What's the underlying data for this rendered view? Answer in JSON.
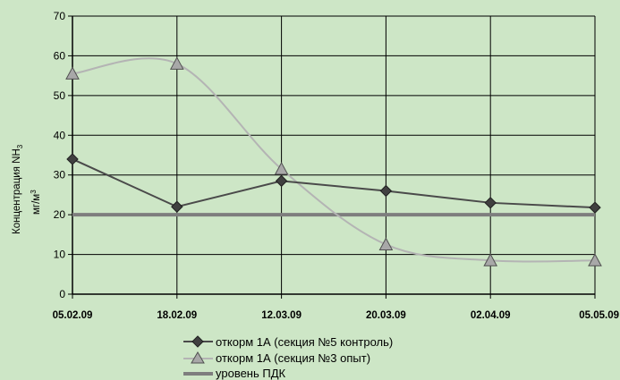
{
  "chart_data": {
    "type": "line",
    "categories": [
      "05.02.09",
      "18.02.09",
      "12.03.09",
      "20.03.09",
      "02.04.09",
      "05.05.09"
    ],
    "ylabel_main": "Концентрация NH",
    "ylabel_sub": "3",
    "ylabel_unit": "мг/м",
    "ylabel_unit_sup": "3",
    "ylim": [
      0,
      70
    ],
    "yticks": [
      0,
      10,
      20,
      30,
      40,
      50,
      60,
      70
    ],
    "grid": true,
    "legend_position": "bottom",
    "series": [
      {
        "name": "откорм 1А (секция №5 контроль)",
        "values": [
          34,
          22,
          28.5,
          26,
          23,
          21.8
        ],
        "color": "#4a4a4a",
        "marker": "diamond",
        "smooth": false
      },
      {
        "name": "откорм 1А (секция №3 опыт)",
        "values": [
          55.5,
          58,
          31.5,
          12.5,
          8.5,
          8.5
        ],
        "color": "#b4b4b4",
        "marker": "triangle",
        "smooth": true
      },
      {
        "name": "уровень ПДК",
        "values": [
          20,
          20,
          20,
          20,
          20,
          20
        ],
        "color": "#7e7e7e",
        "marker": "none",
        "smooth": false
      }
    ]
  }
}
